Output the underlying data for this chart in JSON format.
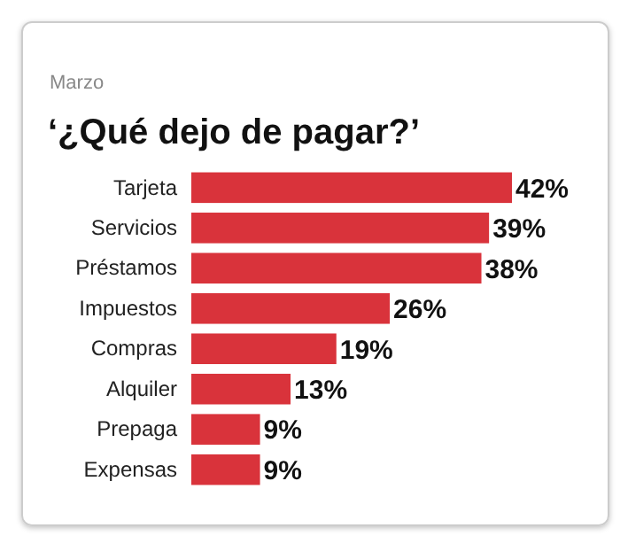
{
  "chart_data": {
    "type": "bar",
    "orientation": "horizontal",
    "subtitle": "Marzo",
    "title": "‘¿Qué dejo de pagar?’",
    "categories": [
      "Tarjeta",
      "Servicios",
      "Préstamos",
      "Impuestos",
      "Compras",
      "Alquiler",
      "Prepaga",
      "Expensas"
    ],
    "values": [
      42,
      39,
      38,
      26,
      19,
      13,
      9,
      9
    ],
    "value_labels": [
      "42%",
      "39%",
      "38%",
      "26%",
      "19%",
      "13%",
      "9%",
      "9%"
    ],
    "color": "#d9333b",
    "xlim": [
      0,
      42
    ],
    "tick_labels": false
  }
}
